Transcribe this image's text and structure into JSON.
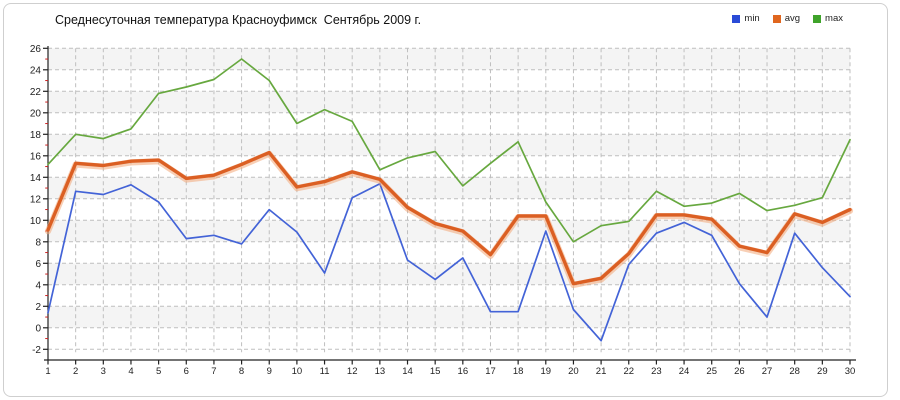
{
  "header": {
    "title": "Среднесуточная температура Красноуфимск  Сентябрь 2009 г."
  },
  "legend": {
    "position": "top-right",
    "items": [
      {
        "label": "min",
        "color": "#2a4bd7"
      },
      {
        "label": "avg",
        "color": "#e0661e"
      },
      {
        "label": "max",
        "color": "#3fa32a"
      }
    ]
  },
  "chart_data": {
    "type": "line",
    "title": "Среднесуточная температура Красноуфимск  Сентябрь 2009 г.",
    "xlabel": "",
    "ylabel": "",
    "x": [
      1,
      2,
      3,
      4,
      5,
      6,
      7,
      8,
      9,
      10,
      11,
      12,
      13,
      14,
      15,
      16,
      17,
      18,
      19,
      20,
      21,
      22,
      23,
      24,
      25,
      26,
      27,
      28,
      29,
      30
    ],
    "x_tick_labels": [
      "1",
      "2",
      "3",
      "4",
      "5",
      "6",
      "7",
      "8",
      "9",
      "10",
      "11",
      "12",
      "13",
      "14",
      "15",
      "16",
      "17",
      "18",
      "19",
      "20",
      "21",
      "22",
      "23",
      "24",
      "25",
      "26",
      "27",
      "28",
      "29",
      "30"
    ],
    "y_tick_labels": [
      "26",
      "24",
      "22",
      "20",
      "18",
      "16",
      "14",
      "12",
      "10",
      "8",
      "6",
      "4",
      "2",
      "0",
      "-2"
    ],
    "ylim": [
      -2,
      26
    ],
    "ytick_step": 2,
    "grid": "dashed vertical and horizontal",
    "plot_bands": "alternating horizontal gray/white stripes every 2 units",
    "legend_position": "top-right",
    "series": [
      {
        "name": "min",
        "color": "#4363d7",
        "style": "thin",
        "values": [
          1.4,
          12.7,
          12.4,
          13.3,
          11.7,
          8.3,
          8.6,
          7.8,
          11.0,
          8.9,
          5.1,
          12.1,
          13.4,
          6.3,
          4.5,
          6.5,
          1.5,
          1.5,
          9.0,
          1.7,
          -1.2,
          5.9,
          8.8,
          9.8,
          8.6,
          4.1,
          1.0,
          8.8,
          5.6,
          2.9
        ]
      },
      {
        "name": "avg",
        "color": "#db5f23",
        "style": "thick",
        "values": [
          9.1,
          15.3,
          15.1,
          15.5,
          15.6,
          13.9,
          14.2,
          15.2,
          16.3,
          13.1,
          13.6,
          14.5,
          13.8,
          11.2,
          9.7,
          9.0,
          6.8,
          10.4,
          10.4,
          4.1,
          4.6,
          6.9,
          10.5,
          10.5,
          10.1,
          7.6,
          7.0,
          10.6,
          9.8,
          11.0
        ]
      },
      {
        "name": "max",
        "color": "#67a83f",
        "style": "thin",
        "values": [
          15.2,
          18.0,
          17.6,
          18.5,
          21.8,
          22.4,
          23.1,
          25.0,
          23.0,
          19.0,
          20.3,
          19.2,
          14.7,
          15.8,
          16.4,
          13.2,
          15.3,
          17.3,
          11.7,
          8.0,
          9.5,
          9.9,
          12.7,
          11.3,
          11.6,
          12.5,
          10.9,
          11.4,
          12.1,
          17.5
        ]
      }
    ]
  },
  "colors": {
    "band": "#f4f4f4",
    "grid": "#bfbfbf",
    "axis": "#222222",
    "tick_label": "#222222",
    "minor_tick": "#cc2222",
    "frame_border": "#cfcfcf"
  }
}
